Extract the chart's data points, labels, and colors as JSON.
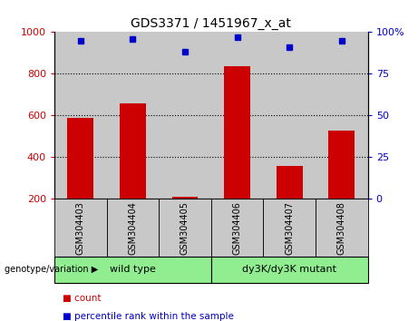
{
  "title": "GDS3371 / 1451967_x_at",
  "samples": [
    "GSM304403",
    "GSM304404",
    "GSM304405",
    "GSM304406",
    "GSM304407",
    "GSM304408"
  ],
  "counts": [
    590,
    660,
    210,
    835,
    360,
    530
  ],
  "percentiles": [
    95,
    96,
    88,
    97,
    91,
    95
  ],
  "y_min": 200,
  "y_max": 1000,
  "y_ticks": [
    200,
    400,
    600,
    800,
    1000
  ],
  "y_right_ticks": [
    0,
    25,
    50,
    75,
    100
  ],
  "y_right_labels": [
    "0",
    "25",
    "50",
    "75",
    "100%"
  ],
  "bar_color": "#cc0000",
  "dot_color": "#0000cc",
  "group1_label": "wild type",
  "group2_label": "dy3K/dy3K mutant",
  "group_bg_color": "#90ee90",
  "sample_bg_color": "#c8c8c8",
  "legend_count_label": "count",
  "legend_percentile_label": "percentile rank within the sample",
  "genotype_label": "genotype/variation"
}
